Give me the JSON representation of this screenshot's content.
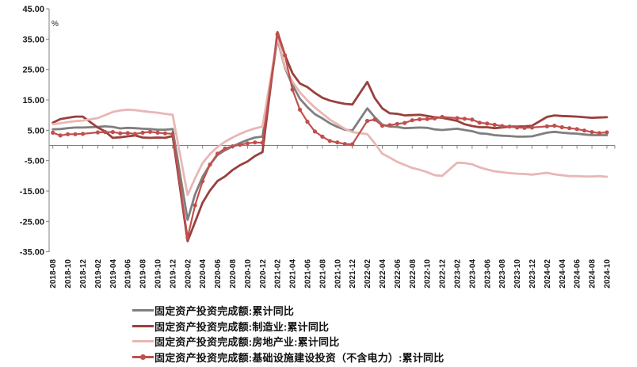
{
  "chart_data": {
    "type": "line",
    "title": "",
    "unit_label": "%",
    "grid": false,
    "legend_position": "bottom",
    "axis_color": "#808080",
    "y_axis": {
      "min": -35,
      "max": 45,
      "ticks": [
        45,
        35,
        25,
        15,
        5,
        -5,
        -15,
        -25,
        -35
      ],
      "tick_format_decimals": 2
    },
    "x_axis": {
      "first_month": "2018-08",
      "last_month": "2024-10",
      "tick_labels": [
        "2018-08",
        "2018-10",
        "2018-12",
        "2019-02",
        "2019-04",
        "2019-06",
        "2019-08",
        "2019-10",
        "2019-12",
        "2020-02",
        "2020-04",
        "2020-06",
        "2020-08",
        "2020-10",
        "2020-12",
        "2021-02",
        "2021-04",
        "2021-06",
        "2021-08",
        "2021-10",
        "2021-12",
        "2022-02",
        "2022-04",
        "2022-06",
        "2022-08",
        "2022-10",
        "2022-12",
        "2023-02",
        "2023-04",
        "2023-06",
        "2023-08",
        "2023-10",
        "2023-12",
        "2024-02",
        "2024-04",
        "2024-06",
        "2024-08",
        "2024-10"
      ]
    },
    "dates": [
      "2018-08",
      "2018-09",
      "2018-10",
      "2018-11",
      "2018-12",
      "2019-02",
      "2019-03",
      "2019-04",
      "2019-05",
      "2019-06",
      "2019-07",
      "2019-08",
      "2019-09",
      "2019-10",
      "2019-11",
      "2019-12",
      "2020-02",
      "2020-03",
      "2020-04",
      "2020-05",
      "2020-06",
      "2020-07",
      "2020-08",
      "2020-09",
      "2020-10",
      "2020-11",
      "2020-12",
      "2021-02",
      "2021-03",
      "2021-04",
      "2021-05",
      "2021-06",
      "2021-07",
      "2021-08",
      "2021-09",
      "2021-10",
      "2021-11",
      "2021-12",
      "2022-02",
      "2022-03",
      "2022-04",
      "2022-05",
      "2022-06",
      "2022-07",
      "2022-08",
      "2022-09",
      "2022-10",
      "2022-11",
      "2022-12",
      "2023-02",
      "2023-03",
      "2023-04",
      "2023-05",
      "2023-06",
      "2023-07",
      "2023-08",
      "2023-09",
      "2023-10",
      "2023-11",
      "2023-12",
      "2024-02",
      "2024-03",
      "2024-04",
      "2024-05",
      "2024-06",
      "2024-07",
      "2024-08",
      "2024-09",
      "2024-10"
    ],
    "series": [
      {
        "name": "固定资产投资完成额:累计同比",
        "color": "#7F7F7F",
        "marker": "none",
        "values": [
          5.3,
          5.4,
          5.7,
          5.9,
          5.9,
          6.1,
          6.3,
          6.1,
          5.6,
          5.8,
          5.7,
          5.5,
          5.4,
          5.2,
          5.2,
          5.4,
          -24.5,
          -16.1,
          -10.3,
          -6.3,
          -3.1,
          -1.6,
          -0.3,
          0.8,
          1.8,
          2.6,
          2.9,
          35.0,
          25.6,
          19.9,
          15.4,
          12.6,
          10.3,
          8.9,
          7.3,
          6.1,
          5.2,
          4.9,
          12.2,
          9.3,
          6.8,
          6.2,
          6.1,
          5.7,
          5.8,
          5.9,
          5.8,
          5.3,
          5.1,
          5.5,
          5.1,
          4.7,
          4.0,
          3.8,
          3.4,
          3.2,
          3.1,
          2.9,
          2.9,
          3.0,
          4.2,
          4.5,
          4.2,
          4.0,
          3.9,
          3.6,
          3.4,
          3.4,
          3.4
        ]
      },
      {
        "name": "固定资产投资完成额:制造业:累计同比",
        "color": "#99403D",
        "marker": "none",
        "values": [
          7.5,
          8.7,
          9.1,
          9.5,
          9.5,
          5.9,
          4.6,
          2.5,
          2.7,
          3.0,
          3.3,
          2.6,
          2.5,
          2.6,
          2.5,
          3.1,
          -31.5,
          -25.2,
          -18.8,
          -14.8,
          -11.7,
          -10.2,
          -8.1,
          -6.5,
          -5.3,
          -3.5,
          -2.2,
          37.3,
          29.8,
          23.8,
          20.4,
          19.2,
          17.3,
          15.7,
          14.8,
          14.2,
          13.7,
          13.5,
          20.9,
          15.6,
          12.2,
          10.6,
          10.4,
          9.9,
          10.0,
          10.1,
          9.7,
          9.3,
          9.1,
          8.1,
          7.0,
          6.4,
          6.0,
          6.0,
          5.7,
          5.9,
          6.2,
          6.2,
          6.3,
          6.5,
          9.4,
          9.9,
          9.7,
          9.6,
          9.5,
          9.3,
          9.1,
          9.2,
          9.3
        ]
      },
      {
        "name": "固定资产投资完成额:房地产业:累计同比",
        "color": "#E8B7B5",
        "marker": "none",
        "values": [
          7.0,
          7.3,
          7.7,
          8.0,
          8.2,
          9.0,
          10.0,
          11.0,
          11.5,
          11.8,
          11.6,
          11.3,
          11.0,
          10.8,
          10.4,
          10.1,
          -16.3,
          -10.8,
          -5.8,
          -2.8,
          -0.5,
          1.2,
          2.6,
          3.8,
          4.8,
          5.6,
          6.2,
          35.5,
          26.0,
          21.0,
          17.5,
          14.8,
          12.5,
          10.5,
          8.5,
          7.0,
          5.5,
          4.4,
          3.7,
          0.7,
          -2.7,
          -4.0,
          -5.4,
          -6.4,
          -7.4,
          -8.0,
          -8.8,
          -9.8,
          -10.0,
          -5.7,
          -5.8,
          -6.2,
          -7.2,
          -7.9,
          -8.5,
          -8.8,
          -9.1,
          -9.3,
          -9.4,
          -9.6,
          -9.0,
          -9.5,
          -9.8,
          -10.1,
          -10.1,
          -10.2,
          -10.2,
          -10.1,
          -10.3
        ]
      },
      {
        "name": "固定资产投资完成额:基础设施建设投资（不含电力）:累计同比",
        "color": "#C0504D",
        "marker": "circle",
        "values": [
          4.2,
          3.3,
          3.7,
          3.7,
          3.8,
          4.3,
          4.4,
          4.4,
          4.0,
          4.1,
          3.8,
          4.2,
          4.5,
          4.2,
          4.0,
          3.8,
          -30.3,
          -19.7,
          -11.8,
          -6.3,
          -2.7,
          -1.0,
          -0.3,
          0.2,
          0.7,
          1.0,
          0.9,
          36.6,
          29.7,
          18.4,
          11.8,
          7.8,
          4.6,
          2.9,
          1.5,
          1.0,
          0.5,
          0.4,
          8.1,
          8.5,
          6.5,
          6.7,
          7.1,
          7.4,
          8.3,
          8.6,
          8.7,
          8.9,
          9.4,
          9.0,
          8.8,
          8.5,
          7.5,
          7.2,
          6.8,
          6.4,
          6.2,
          5.9,
          5.8,
          5.9,
          6.3,
          6.5,
          6.0,
          5.7,
          5.4,
          4.9,
          4.4,
          4.1,
          4.3
        ]
      }
    ]
  }
}
